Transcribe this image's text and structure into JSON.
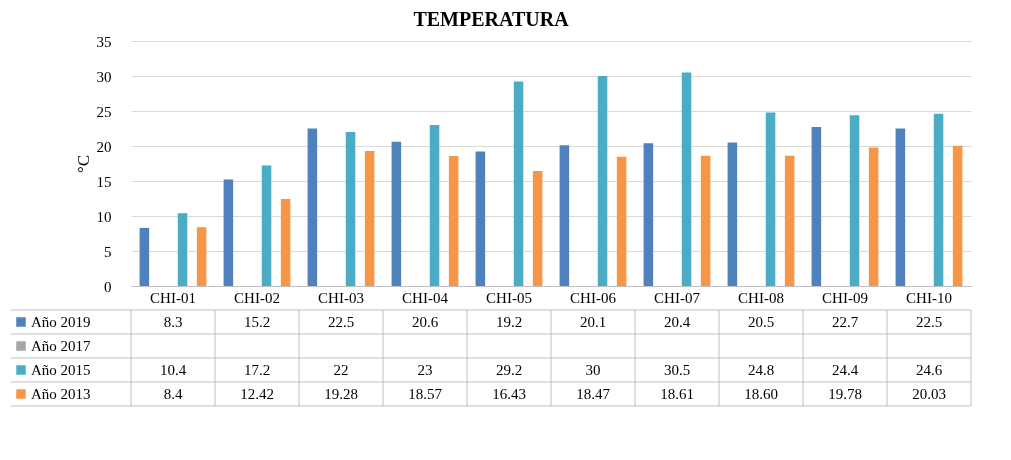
{
  "chart_data": {
    "type": "bar",
    "title": "TEMPERATURA",
    "ylabel": "°C",
    "categories": [
      "CHI-01",
      "CHI-02",
      "CHI-03",
      "CHI-04",
      "CHI-05",
      "CHI-06",
      "CHI-07",
      "CHI-08",
      "CHI-09",
      "CHI-10"
    ],
    "series": [
      {
        "name": "Año 2019",
        "color": "#4f81bd",
        "values": [
          8.3,
          15.2,
          22.5,
          20.6,
          19.2,
          20.1,
          20.4,
          20.5,
          22.7,
          22.5
        ],
        "value_labels": [
          "8.3",
          "15.2",
          "22.5",
          "20.6",
          "19.2",
          "20.1",
          "20.4",
          "20.5",
          "22.7",
          "22.5"
        ]
      },
      {
        "name": "Año 2017",
        "color": "#a5a5a5",
        "values": [
          null,
          null,
          null,
          null,
          null,
          null,
          null,
          null,
          null,
          null
        ]
      },
      {
        "name": "Año 2015",
        "color": "#4bacc6",
        "values": [
          10.4,
          17.2,
          22,
          23,
          29.2,
          30,
          30.5,
          24.8,
          24.4,
          24.6
        ],
        "value_labels": [
          "10.4",
          "17.2",
          "22",
          "23",
          "29.2",
          "30",
          "30.5",
          "24.8",
          "24.4",
          "24.6"
        ]
      },
      {
        "name": "Año 2013",
        "color": "#f79646",
        "values": [
          8.4,
          12.42,
          19.28,
          18.57,
          16.43,
          18.47,
          18.61,
          18.6,
          19.78,
          20.03
        ],
        "value_labels": [
          "8.4",
          "12.42",
          "19.28",
          "18.57",
          "16.43",
          "18.47",
          "18.61",
          "18.60",
          "19.78",
          "20.03"
        ]
      }
    ],
    "ylim": [
      0,
      35
    ],
    "yticks": [
      0,
      5,
      10,
      15,
      20,
      25,
      30,
      35
    ],
    "grid": "y",
    "legend": "bottom"
  }
}
